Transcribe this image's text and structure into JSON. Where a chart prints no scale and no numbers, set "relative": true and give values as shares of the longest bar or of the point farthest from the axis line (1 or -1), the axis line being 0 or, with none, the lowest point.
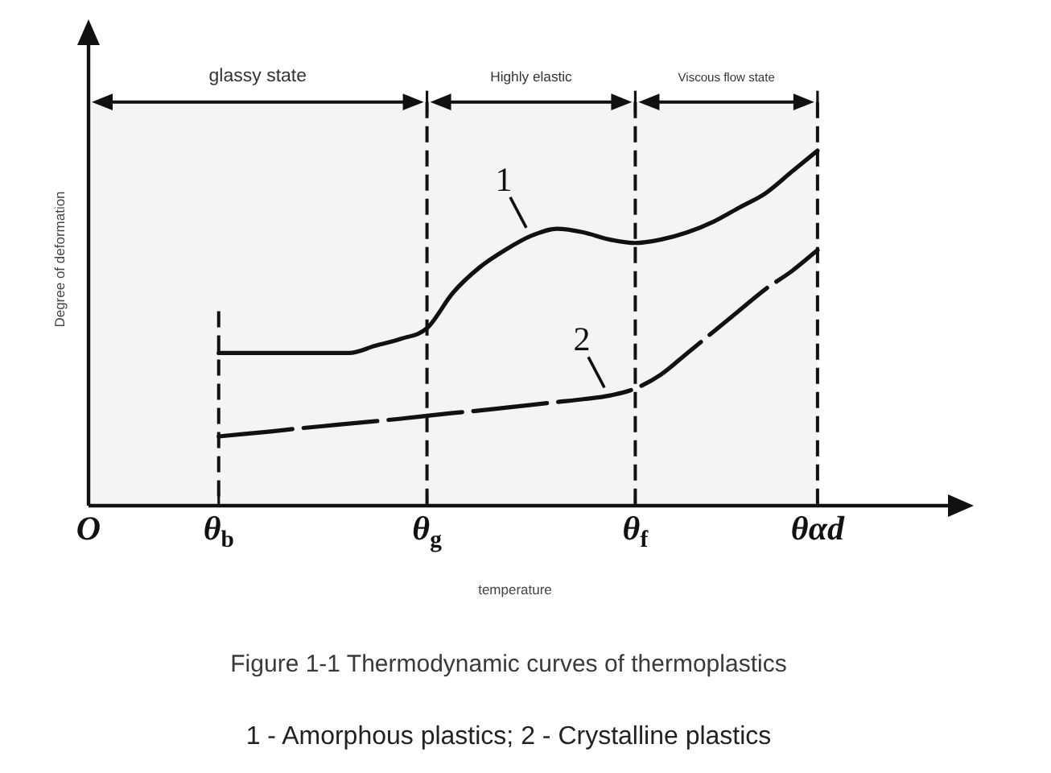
{
  "chart_data": {
    "type": "line",
    "title": "Figure 1-1 Thermodynamic curves of thermoplastics",
    "xlabel": "temperature",
    "ylabel": "Degree of deformation",
    "annotations": [
      "1 - Amorphous plastics; 2 - Crystalline plastics"
    ],
    "relative": true,
    "marker": "none",
    "categories": [
      "O",
      null,
      null,
      null,
      null,
      "θ$_{b}$",
      null,
      null,
      null,
      null,
      null,
      null,
      null,
      "θ$_{g}$",
      null,
      null,
      null,
      null,
      null,
      null,
      null,
      "θ$_{f}$",
      null,
      null,
      null,
      null,
      null,
      null,
      "θαd",
      null,
      null,
      null,
      null,
      null,
      null
    ],
    "series": [
      {
        "name": "1",
        "color": "#111111",
        "line_style": "solid",
        "values": [
          null,
          null,
          null,
          null,
          null,
          0.43,
          0.43,
          0.43,
          0.43,
          0.43,
          0.43,
          0.45,
          0.47,
          0.5,
          0.6,
          0.67,
          0.72,
          0.76,
          0.78,
          0.77,
          0.75,
          0.74,
          0.75,
          0.77,
          0.8,
          0.84,
          0.88,
          0.94,
          1,
          null,
          null,
          null,
          null,
          null,
          null
        ]
      },
      {
        "name": "2",
        "color": "#111111",
        "line_style": "dashed",
        "values": [
          null,
          null,
          null,
          null,
          null,
          0.195,
          0.202,
          0.209,
          0.217,
          0.224,
          0.231,
          0.238,
          0.245,
          0.253,
          0.261,
          0.268,
          0.276,
          0.284,
          0.292,
          0.3,
          0.31,
          0.33,
          0.37,
          0.43,
          0.49,
          0.55,
          0.61,
          0.66,
          0.72,
          null,
          null,
          null,
          null,
          null,
          null
        ]
      }
    ],
    "ref_lines": [
      {
        "axis": "x",
        "value": "θ$_{b}$",
        "line_style": "dashed"
      },
      {
        "axis": "x",
        "value": "θ$_{g}$",
        "line_style": "dashed"
      },
      {
        "axis": "x",
        "value": "θ$_{f}$",
        "line_style": "dashed"
      },
      {
        "axis": "x",
        "value": "θαd",
        "line_style": "dashed"
      }
    ],
    "bands": [
      {
        "axis": "x",
        "from": "O",
        "to": "θ$_{g}$",
        "label": "glassy state",
        "color": "#f4f4f4"
      },
      {
        "axis": "x",
        "from": "θ$_{g}$",
        "to": "θ$_{f}$",
        "label": "Highly elastic",
        "color": "#f4f4f4"
      },
      {
        "axis": "x",
        "from": "θ$_{f}$",
        "to": "θαd",
        "label": "Viscous flow state",
        "color": "#f4f4f4"
      }
    ]
  }
}
